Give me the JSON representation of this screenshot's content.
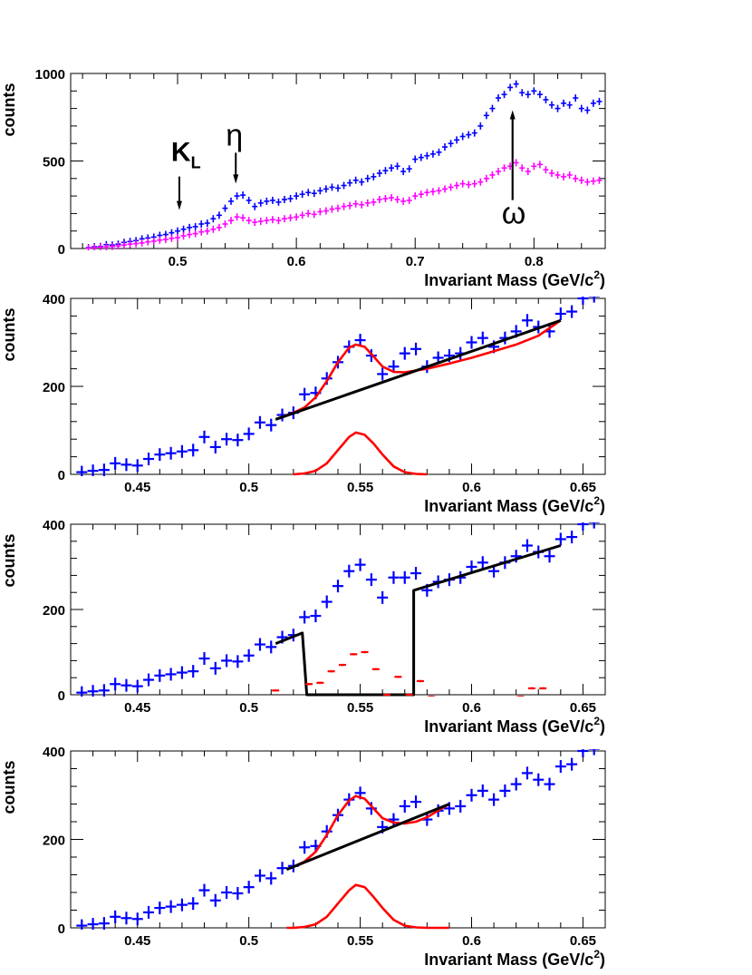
{
  "colors": {
    "data": "#0000ff",
    "data2": "#ff00ff",
    "signal": "#ff0000",
    "background": "#000000",
    "sideband": "#ff0000"
  },
  "chart_data": [
    {
      "type": "scatter",
      "xlabel": "Invariant Mass (GeV/c²)",
      "xlabel_parts": {
        "main": "Invariant Mass (GeV/c",
        "sup": "2",
        "close": ")"
      },
      "ylabel": "counts",
      "xlim": [
        0.41,
        0.86
      ],
      "ylim": [
        0,
        1000
      ],
      "xticks": [
        0.5,
        0.6,
        0.7,
        0.8
      ],
      "xtick_labels": [
        "0.5",
        "0.6",
        "0.7",
        "0.8"
      ],
      "yticks": [
        0,
        500,
        1000
      ],
      "ytick_labels": [
        "0",
        "500",
        "1000"
      ],
      "grid": false,
      "annotations": [
        {
          "label": "K",
          "sub": "L",
          "x": 0.503,
          "y": 230,
          "arrow_to": 185
        },
        {
          "label": "η",
          "x": 0.549,
          "y": 340,
          "arrow_to": 390
        },
        {
          "label": "ω",
          "x": 0.782,
          "y": 780,
          "arrow_from": 380
        }
      ],
      "series": [
        {
          "style": "crosses",
          "color": "data",
          "x": [
            0.425,
            0.43,
            0.435,
            0.44,
            0.445,
            0.45,
            0.455,
            0.46,
            0.465,
            0.47,
            0.475,
            0.48,
            0.485,
            0.49,
            0.495,
            0.5,
            0.505,
            0.51,
            0.515,
            0.52,
            0.525,
            0.53,
            0.535,
            0.54,
            0.545,
            0.55,
            0.555,
            0.56,
            0.565,
            0.57,
            0.575,
            0.58,
            0.585,
            0.59,
            0.595,
            0.6,
            0.605,
            0.61,
            0.615,
            0.62,
            0.625,
            0.63,
            0.635,
            0.64,
            0.645,
            0.65,
            0.655,
            0.66,
            0.665,
            0.67,
            0.675,
            0.68,
            0.685,
            0.69,
            0.695,
            0.7,
            0.705,
            0.71,
            0.715,
            0.72,
            0.725,
            0.73,
            0.735,
            0.74,
            0.745,
            0.75,
            0.755,
            0.76,
            0.765,
            0.77,
            0.775,
            0.78,
            0.785,
            0.79,
            0.795,
            0.8,
            0.805,
            0.81,
            0.815,
            0.82,
            0.825,
            0.83,
            0.835,
            0.84,
            0.845,
            0.85,
            0.855
          ],
          "y": [
            5,
            10,
            12,
            22,
            20,
            25,
            35,
            40,
            45,
            55,
            60,
            65,
            75,
            80,
            90,
            100,
            110,
            120,
            125,
            140,
            145,
            170,
            190,
            230,
            270,
            300,
            305,
            275,
            240,
            260,
            270,
            275,
            265,
            280,
            285,
            300,
            310,
            320,
            315,
            330,
            340,
            350,
            345,
            360,
            375,
            390,
            380,
            400,
            410,
            430,
            445,
            460,
            470,
            440,
            455,
            510,
            520,
            530,
            540,
            550,
            580,
            600,
            620,
            640,
            650,
            660,
            700,
            760,
            800,
            860,
            880,
            920,
            940,
            890,
            880,
            900,
            880,
            850,
            820,
            800,
            830,
            820,
            860,
            800,
            790,
            830,
            840
          ]
        },
        {
          "style": "crosses",
          "color": "data2",
          "x": [
            0.425,
            0.43,
            0.435,
            0.44,
            0.445,
            0.45,
            0.455,
            0.46,
            0.465,
            0.47,
            0.475,
            0.48,
            0.485,
            0.49,
            0.495,
            0.5,
            0.505,
            0.51,
            0.515,
            0.52,
            0.525,
            0.53,
            0.535,
            0.54,
            0.545,
            0.55,
            0.555,
            0.56,
            0.565,
            0.57,
            0.575,
            0.58,
            0.585,
            0.59,
            0.595,
            0.6,
            0.605,
            0.61,
            0.615,
            0.62,
            0.625,
            0.63,
            0.635,
            0.64,
            0.645,
            0.65,
            0.655,
            0.66,
            0.665,
            0.67,
            0.675,
            0.68,
            0.685,
            0.69,
            0.695,
            0.7,
            0.705,
            0.71,
            0.715,
            0.72,
            0.725,
            0.73,
            0.735,
            0.74,
            0.745,
            0.75,
            0.755,
            0.76,
            0.765,
            0.77,
            0.775,
            0.78,
            0.785,
            0.79,
            0.795,
            0.8,
            0.805,
            0.81,
            0.815,
            0.82,
            0.825,
            0.83,
            0.835,
            0.84,
            0.845,
            0.85,
            0.855
          ],
          "y": [
            2,
            5,
            8,
            10,
            12,
            15,
            20,
            25,
            28,
            32,
            38,
            42,
            48,
            52,
            58,
            62,
            72,
            80,
            85,
            95,
            100,
            110,
            120,
            140,
            160,
            180,
            175,
            160,
            150,
            155,
            160,
            165,
            160,
            170,
            175,
            180,
            190,
            200,
            195,
            210,
            215,
            225,
            230,
            240,
            245,
            255,
            250,
            260,
            265,
            280,
            285,
            290,
            280,
            270,
            275,
            300,
            310,
            320,
            325,
            330,
            340,
            350,
            360,
            370,
            365,
            370,
            380,
            400,
            420,
            440,
            460,
            470,
            490,
            460,
            440,
            470,
            480,
            450,
            430,
            420,
            410,
            420,
            400,
            390,
            380,
            385,
            390
          ]
        }
      ]
    },
    {
      "type": "scatter",
      "xlabel": "Invariant Mass (GeV/c²)",
      "xlabel_parts": {
        "main": "Invariant Mass (GeV/c",
        "sup": "2",
        "close": ")"
      },
      "ylabel": "counts",
      "xlim": [
        0.42,
        0.66
      ],
      "ylim": [
        0,
        400
      ],
      "xticks": [
        0.45,
        0.5,
        0.55,
        0.6,
        0.65
      ],
      "xtick_labels": [
        "0.45",
        "0.5",
        "0.55",
        "0.6",
        "0.65"
      ],
      "yticks": [
        0,
        200,
        400
      ],
      "ytick_labels": [
        "0",
        "200",
        "400"
      ],
      "grid": false,
      "series": [
        {
          "style": "crosses",
          "color": "data",
          "x": [
            0.425,
            0.43,
            0.435,
            0.44,
            0.445,
            0.45,
            0.455,
            0.46,
            0.465,
            0.47,
            0.475,
            0.48,
            0.485,
            0.49,
            0.495,
            0.5,
            0.505,
            0.51,
            0.515,
            0.52,
            0.525,
            0.53,
            0.535,
            0.54,
            0.545,
            0.55,
            0.555,
            0.56,
            0.565,
            0.57,
            0.575,
            0.58,
            0.585,
            0.59,
            0.595,
            0.6,
            0.605,
            0.61,
            0.615,
            0.62,
            0.625,
            0.63,
            0.635,
            0.64,
            0.645,
            0.65,
            0.655
          ],
          "y": [
            5,
            8,
            10,
            25,
            22,
            20,
            35,
            45,
            48,
            52,
            55,
            85,
            62,
            80,
            78,
            92,
            118,
            112,
            135,
            140,
            182,
            185,
            218,
            255,
            290,
            305,
            270,
            228,
            245,
            275,
            285,
            245,
            265,
            270,
            275,
            300,
            310,
            290,
            310,
            325,
            350,
            335,
            325,
            365,
            370,
            400,
            405
          ]
        },
        {
          "style": "curve",
          "color": "signal",
          "x": [
            0.512,
            0.52,
            0.525,
            0.53,
            0.535,
            0.54,
            0.545,
            0.548,
            0.552,
            0.556,
            0.56,
            0.565,
            0.57,
            0.575,
            0.58,
            0.59,
            0.6,
            0.61,
            0.62,
            0.63,
            0.64
          ],
          "y": [
            125,
            140,
            152,
            175,
            212,
            255,
            288,
            295,
            290,
            268,
            245,
            233,
            232,
            236,
            240,
            252,
            265,
            280,
            295,
            315,
            350
          ]
        },
        {
          "style": "line",
          "color": "background",
          "x": [
            0.512,
            0.64
          ],
          "y": [
            125,
            350
          ]
        },
        {
          "style": "curve",
          "color": "signal",
          "x": [
            0.52,
            0.525,
            0.53,
            0.535,
            0.54,
            0.545,
            0.548,
            0.552,
            0.556,
            0.56,
            0.565,
            0.57,
            0.575,
            0.58
          ],
          "y": [
            0,
            2,
            8,
            25,
            55,
            85,
            95,
            90,
            70,
            45,
            18,
            5,
            1,
            0
          ]
        }
      ]
    },
    {
      "type": "scatter",
      "xlabel": "Invariant Mass (GeV/c²)",
      "xlabel_parts": {
        "main": "Invariant Mass (GeV/c",
        "sup": "2",
        "close": ")"
      },
      "ylabel": "counts",
      "xlim": [
        0.42,
        0.66
      ],
      "ylim": [
        0,
        400
      ],
      "xticks": [
        0.45,
        0.5,
        0.55,
        0.6,
        0.65
      ],
      "xtick_labels": [
        "0.45",
        "0.5",
        "0.55",
        "0.6",
        "0.65"
      ],
      "yticks": [
        0,
        200,
        400
      ],
      "ytick_labels": [
        "0",
        "200",
        "400"
      ],
      "grid": false,
      "series": [
        {
          "style": "crosses",
          "color": "data",
          "x": [
            0.425,
            0.43,
            0.435,
            0.44,
            0.445,
            0.45,
            0.455,
            0.46,
            0.465,
            0.47,
            0.475,
            0.48,
            0.485,
            0.49,
            0.495,
            0.5,
            0.505,
            0.51,
            0.515,
            0.52,
            0.525,
            0.53,
            0.535,
            0.54,
            0.545,
            0.55,
            0.555,
            0.56,
            0.565,
            0.57,
            0.575,
            0.58,
            0.585,
            0.59,
            0.595,
            0.6,
            0.605,
            0.61,
            0.615,
            0.62,
            0.625,
            0.63,
            0.635,
            0.64,
            0.645,
            0.65,
            0.655
          ],
          "y": [
            5,
            8,
            10,
            25,
            22,
            20,
            35,
            45,
            48,
            52,
            55,
            85,
            62,
            80,
            78,
            92,
            118,
            112,
            135,
            140,
            182,
            185,
            218,
            255,
            290,
            305,
            270,
            228,
            275,
            275,
            285,
            245,
            265,
            270,
            275,
            300,
            310,
            290,
            310,
            325,
            350,
            335,
            325,
            365,
            370,
            400,
            405
          ]
        },
        {
          "style": "line",
          "color": "background",
          "x": [
            0.512,
            0.524,
            0.524,
            0.526,
            0.572,
            0.574,
            0.574,
            0.64
          ],
          "y": [
            120,
            145,
            145,
            0,
            0,
            0,
            245,
            350
          ]
        },
        {
          "style": "crosses-small",
          "color": "sideband",
          "x": [
            0.512,
            0.517,
            0.522,
            0.527,
            0.532,
            0.537,
            0.542,
            0.547,
            0.552,
            0.557,
            0.562,
            0.567,
            0.572,
            0.577,
            0.582,
            0.592,
            0.602,
            0.612,
            0.622,
            0.627,
            0.632
          ],
          "y": [
            10,
            -10,
            -8,
            25,
            28,
            55,
            70,
            95,
            100,
            60,
            0,
            42,
            0,
            32,
            -5,
            -10,
            -10,
            -10,
            -5,
            15,
            15
          ]
        }
      ]
    },
    {
      "type": "scatter",
      "xlabel": "Invariant Mass (GeV/c²)",
      "xlabel_parts": {
        "main": "Invariant Mass (GeV/c",
        "sup": "2",
        "close": ")"
      },
      "ylabel": "counts",
      "xlim": [
        0.42,
        0.66
      ],
      "ylim": [
        0,
        400
      ],
      "xticks": [
        0.45,
        0.5,
        0.55,
        0.6,
        0.65
      ],
      "xtick_labels": [
        "0.45",
        "0.5",
        "0.55",
        "0.6",
        "0.65"
      ],
      "yticks": [
        0,
        200,
        400
      ],
      "ytick_labels": [
        "0",
        "200",
        "400"
      ],
      "grid": false,
      "series": [
        {
          "style": "crosses",
          "color": "data",
          "x": [
            0.425,
            0.43,
            0.435,
            0.44,
            0.445,
            0.45,
            0.455,
            0.46,
            0.465,
            0.47,
            0.475,
            0.48,
            0.485,
            0.49,
            0.495,
            0.5,
            0.505,
            0.51,
            0.515,
            0.52,
            0.525,
            0.53,
            0.535,
            0.54,
            0.545,
            0.55,
            0.555,
            0.56,
            0.565,
            0.57,
            0.575,
            0.58,
            0.585,
            0.59,
            0.595,
            0.6,
            0.605,
            0.61,
            0.615,
            0.62,
            0.625,
            0.63,
            0.635,
            0.64,
            0.645,
            0.65,
            0.655
          ],
          "y": [
            5,
            8,
            10,
            25,
            22,
            20,
            35,
            45,
            48,
            52,
            55,
            85,
            62,
            80,
            78,
            92,
            118,
            112,
            135,
            140,
            182,
            185,
            218,
            255,
            290,
            305,
            270,
            228,
            245,
            275,
            285,
            245,
            265,
            270,
            275,
            300,
            310,
            290,
            310,
            325,
            350,
            335,
            325,
            365,
            370,
            400,
            405
          ]
        },
        {
          "style": "curve",
          "color": "signal",
          "x": [
            0.517,
            0.52,
            0.525,
            0.53,
            0.535,
            0.54,
            0.545,
            0.548,
            0.552,
            0.556,
            0.56,
            0.565,
            0.57,
            0.575,
            0.58,
            0.585,
            0.59
          ],
          "y": [
            132,
            138,
            150,
            172,
            210,
            255,
            288,
            298,
            292,
            270,
            248,
            238,
            236,
            240,
            250,
            265,
            280
          ]
        },
        {
          "style": "line",
          "color": "background",
          "x": [
            0.517,
            0.59
          ],
          "y": [
            132,
            280
          ]
        },
        {
          "style": "curve",
          "color": "signal",
          "x": [
            0.517,
            0.52,
            0.525,
            0.53,
            0.535,
            0.54,
            0.545,
            0.548,
            0.552,
            0.556,
            0.56,
            0.565,
            0.57,
            0.575,
            0.58,
            0.59
          ],
          "y": [
            0,
            0,
            2,
            8,
            25,
            55,
            85,
            97,
            92,
            70,
            45,
            18,
            5,
            1,
            0,
            0
          ]
        }
      ]
    }
  ]
}
